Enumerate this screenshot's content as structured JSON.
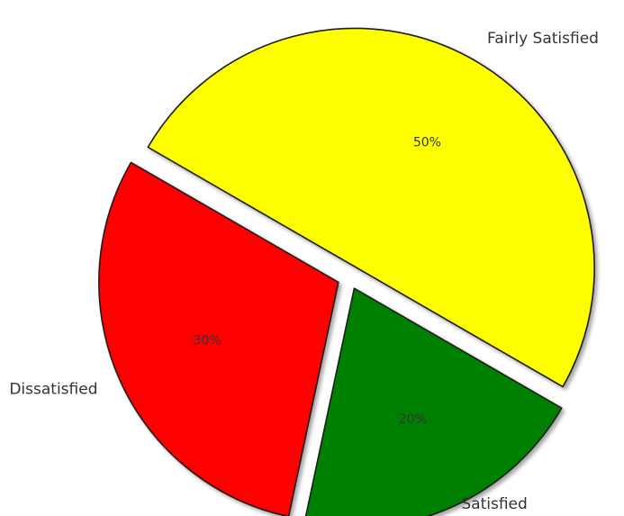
{
  "chart_data": {
    "type": "pie",
    "title": "",
    "start_angle_deg": -30,
    "direction": "counterclockwise",
    "shadow": true,
    "edgecolor": "#1a1a1a",
    "slices": [
      {
        "label": "Fairly Satisfied",
        "value": 50,
        "pct_label": "50%",
        "color": "#ffff00",
        "explode": 0.05
      },
      {
        "label": "Dissatisfied",
        "value": 30,
        "pct_label": "30%",
        "color": "#ff0000",
        "explode": 0.05
      },
      {
        "label": "Satisfied",
        "value": 20,
        "pct_label": "20%",
        "color": "#008000",
        "explode": 0.05
      }
    ]
  }
}
